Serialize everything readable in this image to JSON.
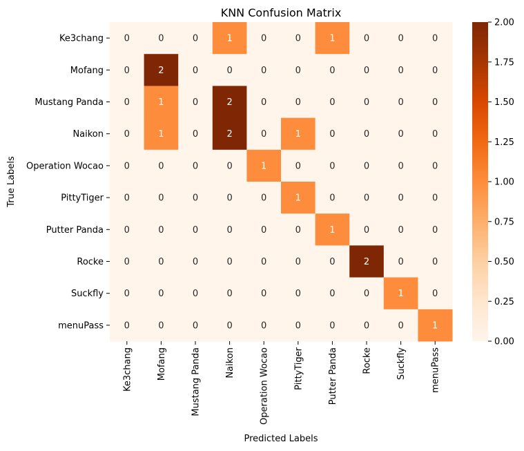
{
  "chart_data": {
    "type": "heatmap",
    "title": "KNN Confusion Matrix",
    "xlabel": "Predicted Labels",
    "ylabel": "True Labels",
    "x_categories": [
      "Ke3chang",
      "Mofang",
      "Mustang Panda",
      "Naikon",
      "Operation Wocao",
      "PittyTiger",
      "Putter Panda",
      "Rocke",
      "Suckfly",
      "menuPass"
    ],
    "y_categories": [
      "Ke3chang",
      "Mofang",
      "Mustang Panda",
      "Naikon",
      "Operation Wocao",
      "PittyTiger",
      "Putter Panda",
      "Rocke",
      "Suckfly",
      "menuPass"
    ],
    "values": [
      [
        0,
        0,
        0,
        1,
        0,
        0,
        1,
        0,
        0,
        0
      ],
      [
        0,
        2,
        0,
        0,
        0,
        0,
        0,
        0,
        0,
        0
      ],
      [
        0,
        1,
        0,
        2,
        0,
        0,
        0,
        0,
        0,
        0
      ],
      [
        0,
        1,
        0,
        2,
        0,
        1,
        0,
        0,
        0,
        0
      ],
      [
        0,
        0,
        0,
        0,
        1,
        0,
        0,
        0,
        0,
        0
      ],
      [
        0,
        0,
        0,
        0,
        0,
        1,
        0,
        0,
        0,
        0
      ],
      [
        0,
        0,
        0,
        0,
        0,
        0,
        1,
        0,
        0,
        0
      ],
      [
        0,
        0,
        0,
        0,
        0,
        0,
        0,
        2,
        0,
        0
      ],
      [
        0,
        0,
        0,
        0,
        0,
        0,
        0,
        0,
        1,
        0
      ],
      [
        0,
        0,
        0,
        0,
        0,
        0,
        0,
        0,
        0,
        1
      ]
    ],
    "value_range": [
      0,
      2
    ],
    "colorbar": {
      "colormap": "Oranges",
      "ticks": [
        "0.00",
        "0.25",
        "0.50",
        "0.75",
        "1.00",
        "1.25",
        "1.50",
        "1.75",
        "2.00"
      ]
    },
    "colors": {
      "low": "#fff5eb",
      "mid": "#fd8d3c",
      "high": "#7f2704",
      "annotation_dark": "#262626",
      "annotation_light": "#ffffff"
    },
    "annotations": true,
    "grid": false
  }
}
